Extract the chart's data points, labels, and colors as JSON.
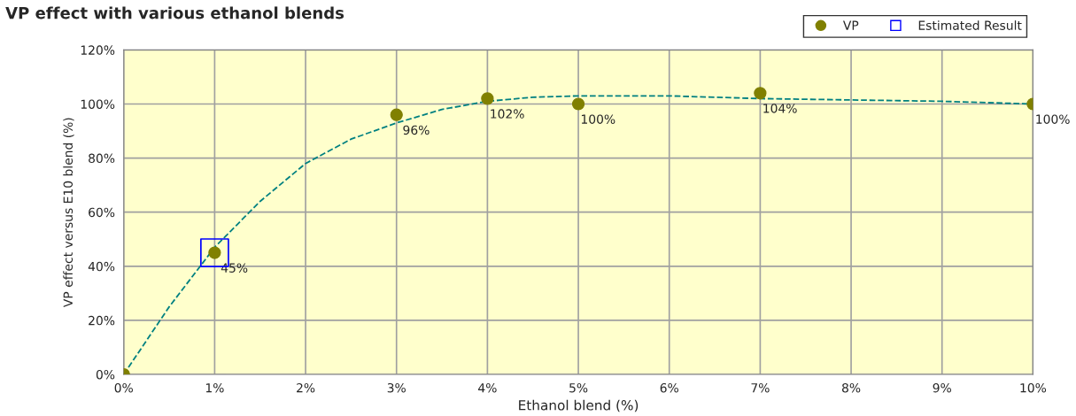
{
  "chart_data": {
    "type": "scatter",
    "title": "VP effect with various ethanol blends",
    "xlabel": "Ethanol blend (%)",
    "ylabel": "VP effect versus E10 blend (%)",
    "x": [
      0,
      1,
      3,
      4,
      5,
      7,
      10
    ],
    "series": [
      {
        "name": "VP",
        "marker": "circle",
        "color": "#808000",
        "values": [
          0,
          45,
          96,
          102,
          100,
          104,
          100
        ],
        "value_labels": [
          null,
          "45%",
          "96%",
          "102%",
          "100%",
          "104%",
          "100%"
        ]
      },
      {
        "name": "Estimated Result",
        "marker": "square",
        "color": "#0000ff",
        "x": [
          1
        ],
        "values": [
          45
        ]
      },
      {
        "type": "line",
        "line_style": "dashed",
        "marker": "none",
        "color": "#008080",
        "x": [
          0,
          0.5,
          1,
          1.5,
          2,
          2.5,
          3,
          3.5,
          4,
          4.5,
          5,
          6,
          7,
          8,
          9,
          10
        ],
        "values": [
          0,
          25,
          47,
          64,
          78,
          87,
          93,
          98,
          101,
          102.5,
          103,
          103,
          102,
          101.5,
          101,
          100
        ]
      }
    ],
    "xlim": [
      0,
      10
    ],
    "xticks": [
      {
        "value": 0,
        "label": "0%"
      },
      {
        "value": 1,
        "label": "1%"
      },
      {
        "value": 2,
        "label": "2%"
      },
      {
        "value": 3,
        "label": "3%"
      },
      {
        "value": 4,
        "label": "4%"
      },
      {
        "value": 5,
        "label": "5%"
      },
      {
        "value": 6,
        "label": "6%"
      },
      {
        "value": 7,
        "label": "7%"
      },
      {
        "value": 8,
        "label": "8%"
      },
      {
        "value": 9,
        "label": "9%"
      },
      {
        "value": 10,
        "label": "10%"
      }
    ],
    "ylim": [
      0,
      120
    ],
    "yticks": [
      {
        "value": 0,
        "label": "0%"
      },
      {
        "value": 20,
        "label": "20%"
      },
      {
        "value": 40,
        "label": "40%"
      },
      {
        "value": 60,
        "label": "60%"
      },
      {
        "value": 80,
        "label": "80%"
      },
      {
        "value": 100,
        "label": "100%"
      },
      {
        "value": 120,
        "label": "120%"
      }
    ],
    "grid": true,
    "legend": "top right"
  }
}
